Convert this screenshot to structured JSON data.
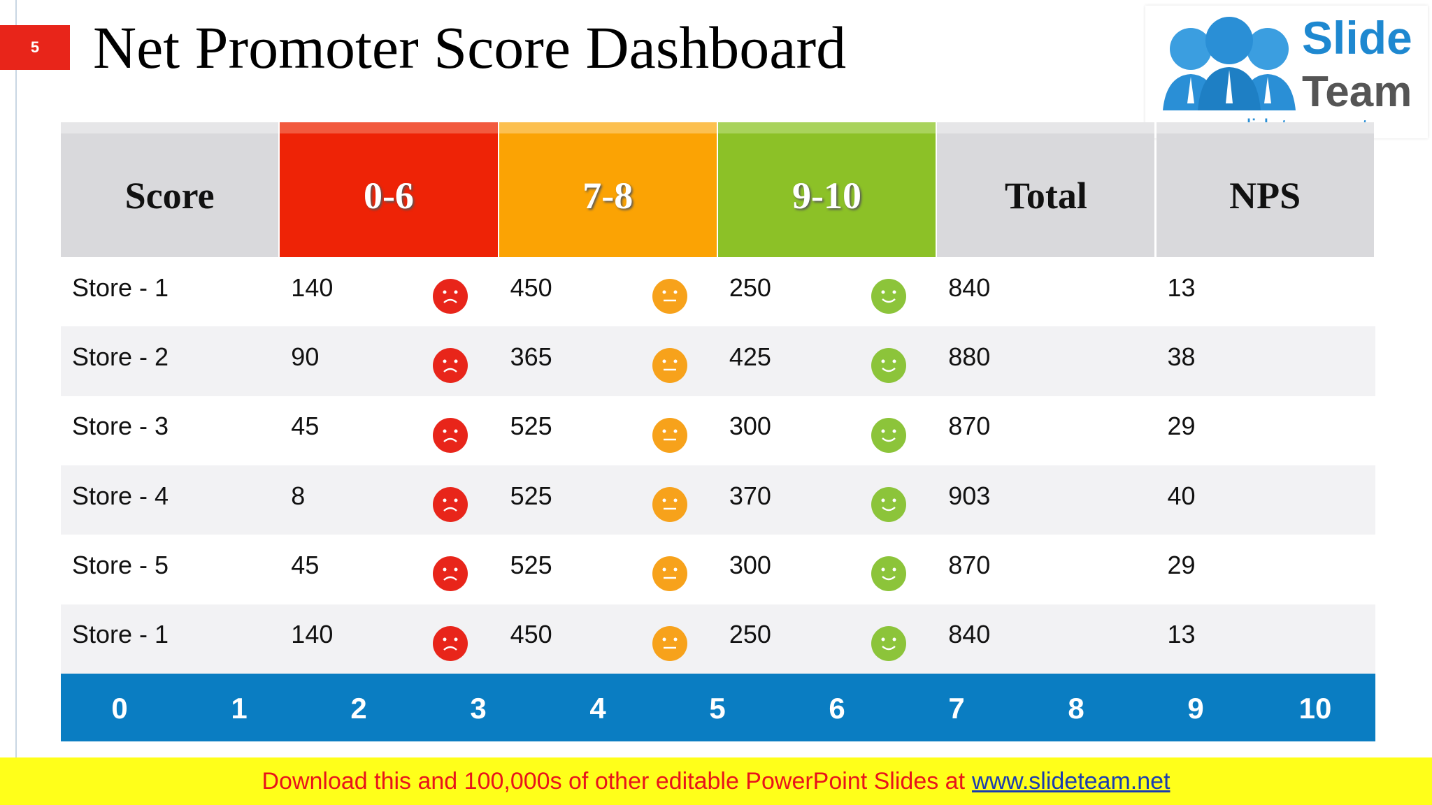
{
  "slide_number": "5",
  "title": "Net Promoter Score Dashboard",
  "logo": {
    "line1": "Slide",
    "line2": "Team",
    "url": "www.slideteam.net"
  },
  "table": {
    "header": [
      "Score",
      "0-6",
      "7-8",
      "9-10",
      "Total",
      "NPS"
    ],
    "rows": [
      [
        "Store - 1",
        140,
        450,
        250,
        840,
        13
      ],
      [
        "Store - 2",
        90,
        365,
        425,
        880,
        38
      ],
      [
        "Store - 3",
        45,
        525,
        300,
        870,
        29
      ],
      [
        "Store - 4",
        8,
        525,
        370,
        903,
        40
      ],
      [
        "Store - 5",
        45,
        525,
        300,
        870,
        29
      ],
      [
        "Store - 1",
        140,
        450,
        250,
        840,
        13
      ]
    ]
  },
  "scale": [
    0,
    1,
    2,
    3,
    4,
    5,
    6,
    7,
    8,
    9,
    10
  ],
  "banner": {
    "text": "Download this and 100,000s of other editable PowerPoint Slides at",
    "link": "www.slideteam.net"
  }
}
